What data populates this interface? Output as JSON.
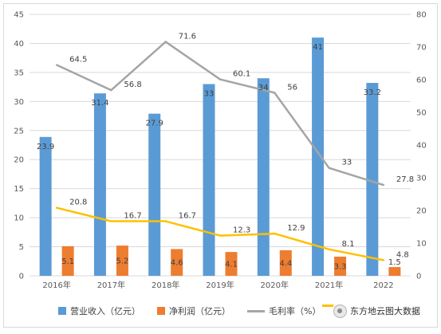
{
  "chart_data": {
    "type": "bar",
    "categories": [
      "2016年",
      "2017年",
      "2018年",
      "2019年",
      "2020年",
      "2021年",
      "2022"
    ],
    "series": [
      {
        "name": "营业收入（亿元）",
        "kind": "bar",
        "axis": "left",
        "color": "#5b9bd5",
        "values": [
          23.9,
          31.4,
          27.9,
          33,
          34,
          41,
          33.2
        ],
        "labels": [
          "23.9",
          "31.4",
          "27.9",
          "33",
          "34",
          "41",
          "33.2"
        ]
      },
      {
        "name": "净利润（亿元）",
        "kind": "bar",
        "axis": "left",
        "color": "#ed7d31",
        "values": [
          5.1,
          5.2,
          4.6,
          4.1,
          4.4,
          3.3,
          1.5
        ],
        "labels": [
          "5.1",
          "5.2",
          "4.6",
          "4.1",
          "4.4",
          "3.3",
          "1.5"
        ]
      },
      {
        "name": "毛利率（%）",
        "kind": "line",
        "axis": "right",
        "color": "#a5a5a5",
        "values": [
          64.5,
          56.8,
          71.6,
          60.1,
          56,
          33,
          27.8
        ],
        "labels": [
          "64.5",
          "56.8",
          "71.6",
          "60.1",
          "56",
          "33",
          "27.8"
        ]
      },
      {
        "name": "",
        "kind": "line",
        "axis": "right",
        "color": "#ffc000",
        "values": [
          20.8,
          16.7,
          16.7,
          12.3,
          12.9,
          8.1,
          4.8
        ],
        "labels": [
          "20.8",
          "16.7",
          "16.7",
          "12.3",
          "12.9",
          "8.1",
          "4.8"
        ]
      }
    ],
    "y_left": {
      "range": [
        0,
        45
      ],
      "ticks": [
        "0",
        "5",
        "10",
        "15",
        "20",
        "25",
        "30",
        "35",
        "40",
        "45"
      ]
    },
    "y_right": {
      "range": [
        0,
        80
      ],
      "ticks": [
        "0",
        "10",
        "20",
        "30",
        "40",
        "50",
        "60",
        "70",
        "80"
      ]
    },
    "grid": true,
    "legend_position": "bottom"
  },
  "legend": {
    "item_1": "营业收入（亿元）",
    "item_2": "净利润（亿元）",
    "item_3": "毛利率（%）"
  },
  "watermark": {
    "text": "东方地云图大数据",
    "icon": "wechat-logo-icon"
  }
}
